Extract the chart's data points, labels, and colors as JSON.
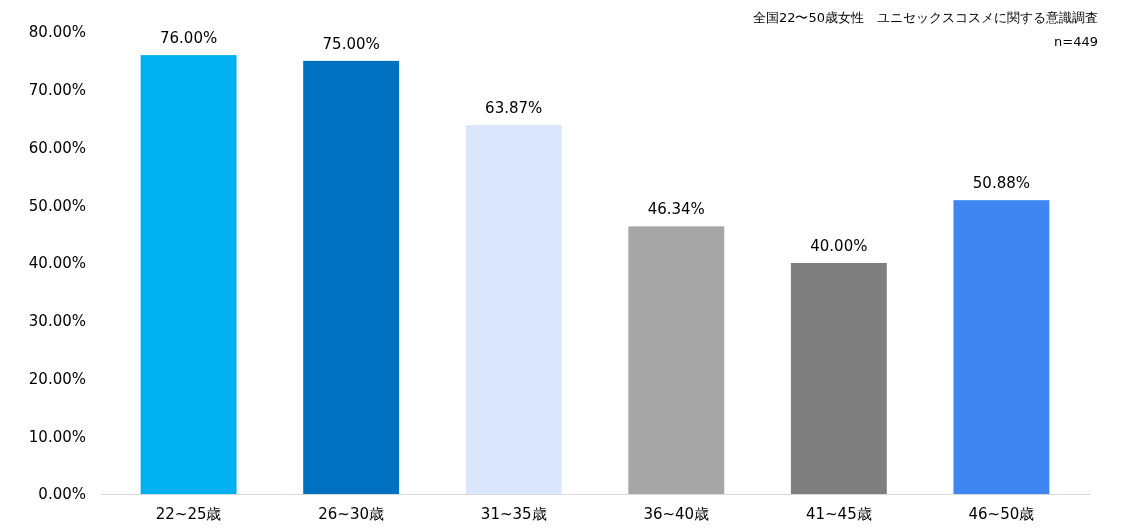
{
  "chart_data": {
    "type": "bar",
    "title": "全国22〜50歳女性　ユニセックスコスメに関する意識調査",
    "subtitle": "n=449",
    "categories": [
      "22~25歳",
      "26~30歳",
      "31~35歳",
      "36~40歳",
      "41~45歳",
      "46~50歳"
    ],
    "values": [
      76,
      75,
      63.87,
      46.34,
      40,
      50.88
    ],
    "value_labels": [
      "76.00%",
      "75.00%",
      "63.87%",
      "46.34%",
      "40.00%",
      "50.88%"
    ],
    "colors": [
      "#00b0f0",
      "#0070c0",
      "#dae6fb",
      "#a6a6a6",
      "#7f7f7f",
      "#3f86f2"
    ],
    "ylim": [
      0,
      80
    ],
    "yticks": [
      {
        "value": 0,
        "label": "0.00%"
      },
      {
        "value": 10,
        "label": "10.00%"
      },
      {
        "value": 20,
        "label": "20.00%"
      },
      {
        "value": 30,
        "label": "30.00%"
      },
      {
        "value": 40,
        "label": "40.00%"
      },
      {
        "value": 50,
        "label": "50.00%"
      },
      {
        "value": 60,
        "label": "60.00%"
      },
      {
        "value": 70,
        "label": "70.00%"
      },
      {
        "value": 80,
        "label": "80.00%"
      }
    ],
    "grid": false,
    "legend": false
  }
}
